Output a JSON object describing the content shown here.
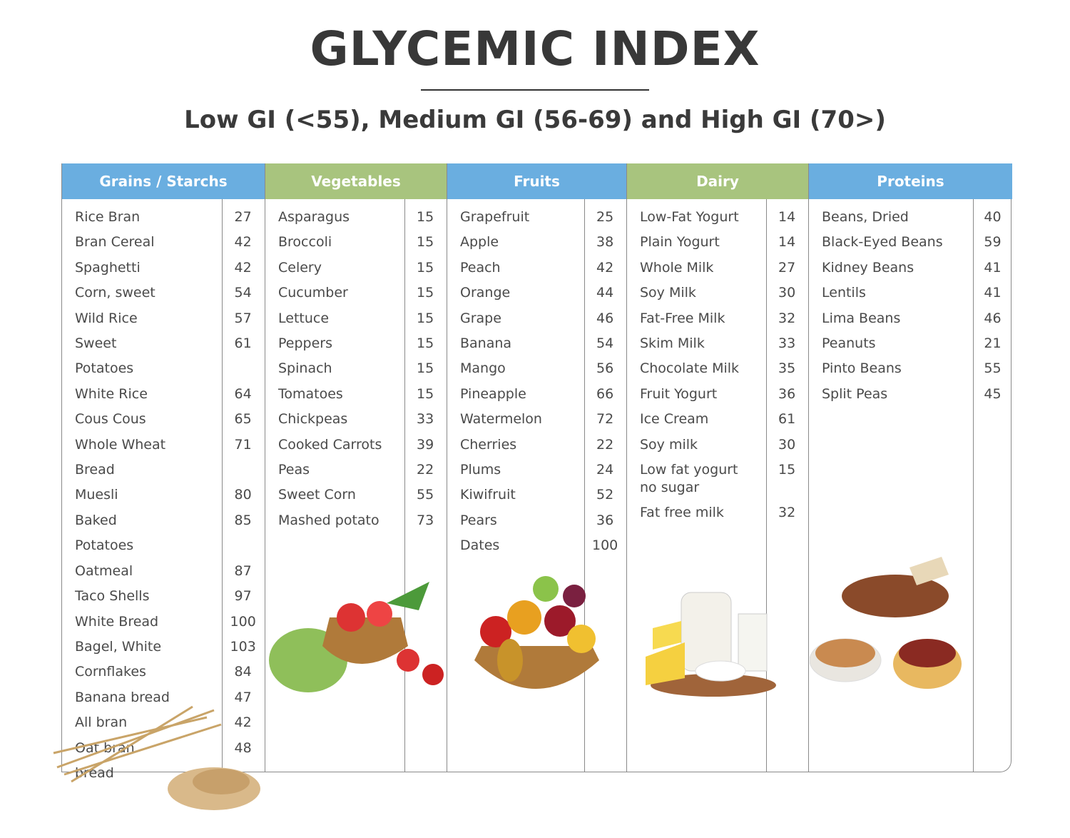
{
  "header": {
    "title": "GLYCEMIC INDEX",
    "subtitle": "Low GI (<55), Medium GI (56-69) and High GI (70>)"
  },
  "table": {
    "columns": [
      {
        "heading": "Grains / Starchs",
        "items": [
          {
            "name": "Rice Bran",
            "gi": 27
          },
          {
            "name": "Bran Cereal",
            "gi": 42
          },
          {
            "name": "Spaghetti",
            "gi": 42
          },
          {
            "name": "Corn, sweet",
            "gi": 54
          },
          {
            "name": "Wild Rice",
            "gi": 57
          },
          {
            "name": "Sweet Potatoes",
            "gi": 61
          },
          {
            "name": "White Rice",
            "gi": 64
          },
          {
            "name": "Cous Cous",
            "gi": 65
          },
          {
            "name": "Whole Wheat Bread",
            "gi": 71
          },
          {
            "name": "Muesli",
            "gi": 80
          },
          {
            "name": "Baked Potatoes",
            "gi": 85
          },
          {
            "name": "Oatmeal",
            "gi": 87
          },
          {
            "name": "Taco Shells",
            "gi": 97
          },
          {
            "name": "White Bread",
            "gi": 100
          },
          {
            "name": "Bagel, White",
            "gi": 103
          },
          {
            "name": "Cornflakes",
            "gi": 84
          },
          {
            "name": "Banana bread",
            "gi": 47
          },
          {
            "name": "All bran",
            "gi": 42
          },
          {
            "name": "Oat bran bread",
            "gi": 48
          }
        ]
      },
      {
        "heading": "Vegetables",
        "items": [
          {
            "name": "Asparagus",
            "gi": 15
          },
          {
            "name": "Broccoli",
            "gi": 15
          },
          {
            "name": "Celery",
            "gi": 15
          },
          {
            "name": "Cucumber",
            "gi": 15
          },
          {
            "name": "Lettuce",
            "gi": 15
          },
          {
            "name": "Peppers",
            "gi": 15
          },
          {
            "name": "Spinach",
            "gi": 15
          },
          {
            "name": "Tomatoes",
            "gi": 15
          },
          {
            "name": "Chickpeas",
            "gi": 33
          },
          {
            "name": "Cooked Carrots",
            "gi": 39
          },
          {
            "name": "Peas",
            "gi": 22
          },
          {
            "name": "Sweet Corn",
            "gi": 55
          },
          {
            "name": "Mashed potato",
            "gi": 73
          }
        ]
      },
      {
        "heading": "Fruits",
        "items": [
          {
            "name": "Grapefruit",
            "gi": 25
          },
          {
            "name": "Apple",
            "gi": 38
          },
          {
            "name": "Peach",
            "gi": 42
          },
          {
            "name": "Orange",
            "gi": 44
          },
          {
            "name": "Grape",
            "gi": 46
          },
          {
            "name": "Banana",
            "gi": 54
          },
          {
            "name": "Mango",
            "gi": 56
          },
          {
            "name": "Pineapple",
            "gi": 66
          },
          {
            "name": "Watermelon",
            "gi": 72
          },
          {
            "name": "Cherries",
            "gi": 22
          },
          {
            "name": "Plums",
            "gi": 24
          },
          {
            "name": "Kiwifruit",
            "gi": 52
          },
          {
            "name": "Pears",
            "gi": 36
          },
          {
            "name": "Dates",
            "gi": 100
          }
        ]
      },
      {
        "heading": "Dairy",
        "items": [
          {
            "name": "Low-Fat Yogurt",
            "gi": 14
          },
          {
            "name": "Plain Yogurt",
            "gi": 14
          },
          {
            "name": "Whole Milk",
            "gi": 27
          },
          {
            "name": "Soy Milk",
            "gi": 30
          },
          {
            "name": "Fat-Free Milk",
            "gi": 32
          },
          {
            "name": "Skim Milk",
            "gi": 33
          },
          {
            "name": "Chocolate Milk",
            "gi": 35
          },
          {
            "name": "Fruit Yogurt",
            "gi": 36
          },
          {
            "name": "Ice Cream",
            "gi": 61
          },
          {
            "name": "Soy milk",
            "gi": 30
          },
          {
            "name": "Low fat yogurt no sugar",
            "gi": 15
          },
          {
            "name": "Fat free milk",
            "gi": 32
          }
        ]
      },
      {
        "heading": "Proteins",
        "items": [
          {
            "name": "Beans, Dried",
            "gi": 40
          },
          {
            "name": "Black-Eyed Beans",
            "gi": 59
          },
          {
            "name": "Kidney Beans",
            "gi": 41
          },
          {
            "name": "Lentils",
            "gi": 41
          },
          {
            "name": "Lima Beans",
            "gi": 46
          },
          {
            "name": "Peanuts",
            "gi": 21
          },
          {
            "name": "Pinto Beans",
            "gi": 55
          },
          {
            "name": "Split Peas",
            "gi": 45
          }
        ]
      }
    ]
  }
}
